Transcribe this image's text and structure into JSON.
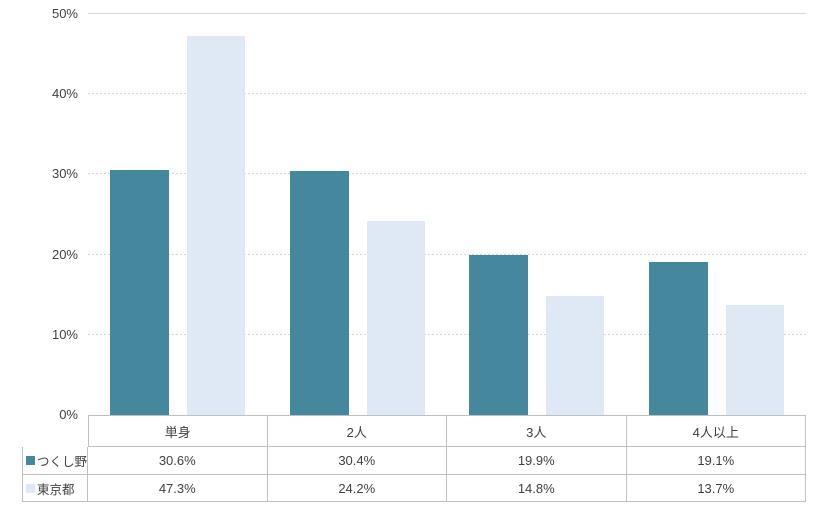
{
  "chart_data": {
    "type": "bar",
    "title": "",
    "xlabel": "",
    "ylabel": "",
    "categories": [
      "単身",
      "2人",
      "3人",
      "4人以上"
    ],
    "series": [
      {
        "name": "つくし野",
        "color": "#45889E",
        "values": [
          30.6,
          30.4,
          19.9,
          19.1
        ],
        "labels": [
          "30.6%",
          "30.4%",
          "19.9%",
          "19.1%"
        ]
      },
      {
        "name": "東京都",
        "color": "#DEE9F5",
        "values": [
          47.3,
          24.2,
          14.8,
          13.7
        ],
        "labels": [
          "47.3%",
          "24.2%",
          "14.8%",
          "13.7%"
        ]
      }
    ],
    "ylim": [
      0,
      50
    ],
    "yticks": [
      0,
      10,
      20,
      30,
      40,
      50
    ],
    "ytick_labels": [
      "0%",
      "10%",
      "20%",
      "30%",
      "40%",
      "50%"
    ],
    "grid": true,
    "gridline_style": "dashed",
    "gridline_color": "#D9D9D9",
    "axis_text_color": "#404040",
    "table_border_color": "#BFBFBF",
    "legend_position": "table-left-column"
  }
}
